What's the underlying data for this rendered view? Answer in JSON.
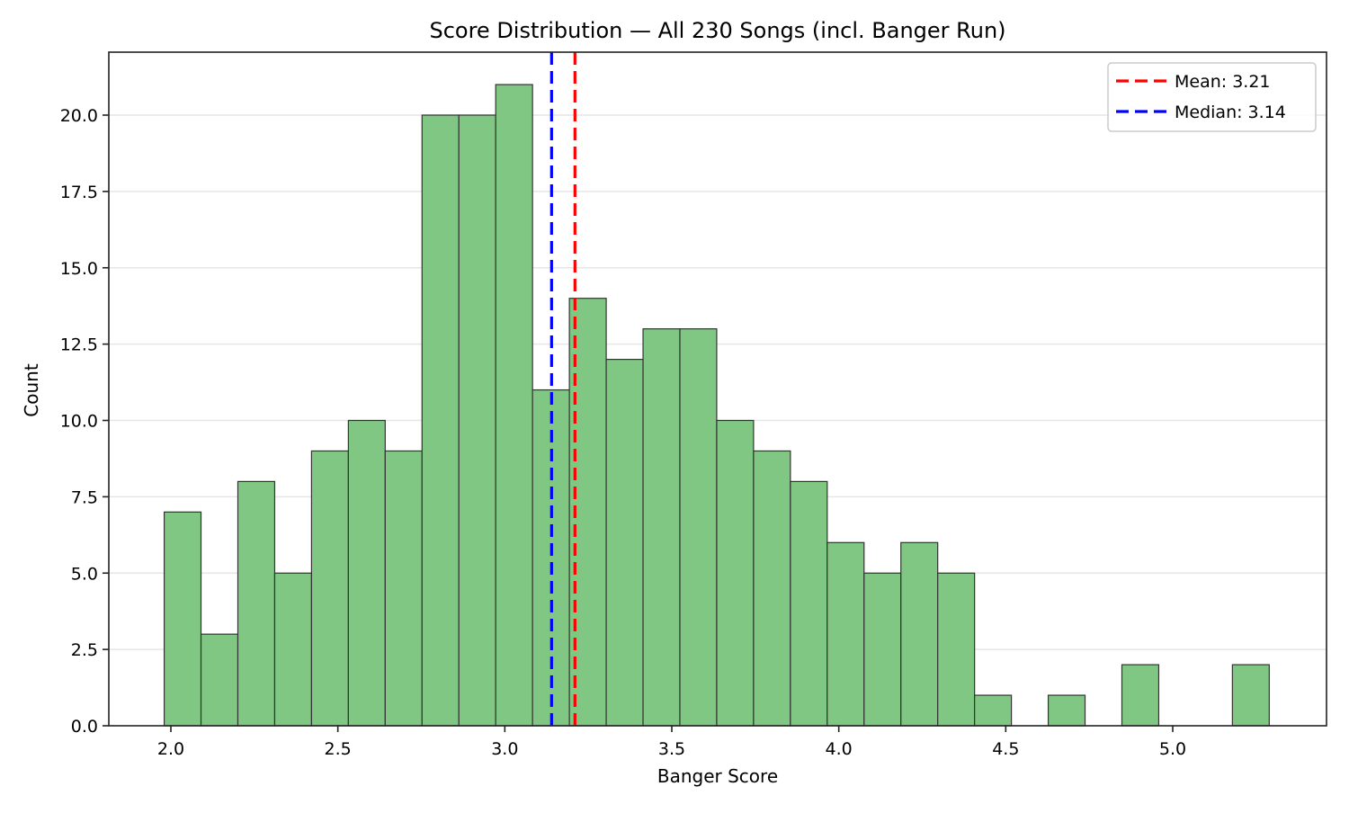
{
  "chart_data": {
    "type": "bar",
    "title": "Score Distribution — All 230 Songs (incl. Banger Run)",
    "xlabel": "Banger Score",
    "ylabel": "Count",
    "xlim": [
      1.83,
      5.46
    ],
    "ylim": [
      0,
      22.05
    ],
    "xticks": [
      "2.0",
      "2.5",
      "3.0",
      "3.5",
      "4.0",
      "4.5",
      "5.0"
    ],
    "yticks": [
      "0.0",
      "2.5",
      "5.0",
      "7.5",
      "10.0",
      "12.5",
      "15.0",
      "17.5",
      "20.0"
    ],
    "grid": "y",
    "bin_start": 1.98,
    "bin_width": 0.1103,
    "bin_count": 30,
    "counts": [
      7,
      3,
      8,
      5,
      9,
      10,
      9,
      20,
      20,
      21,
      11,
      14,
      12,
      13,
      13,
      10,
      9,
      8,
      6,
      5,
      6,
      5,
      1,
      0,
      1,
      0,
      2,
      0,
      0,
      2
    ],
    "bar_color": "#81c784",
    "edge_color": "#333333",
    "reference_lines": [
      {
        "label": "Mean: 3.21",
        "x": 3.21,
        "color": "#ff0000",
        "style": "dashed"
      },
      {
        "label": "Median: 3.14",
        "x": 3.14,
        "color": "#0000ff",
        "style": "dashed"
      }
    ],
    "legend_position": "upper right"
  }
}
